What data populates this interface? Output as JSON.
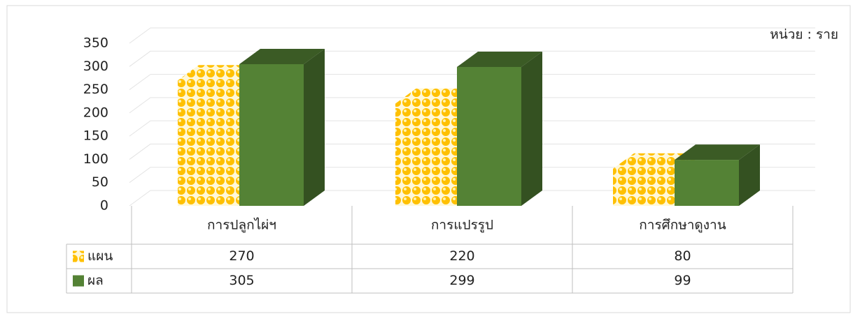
{
  "chart_data": {
    "type": "bar3d",
    "annotation": "หน่วย : ราย",
    "categories": [
      "การปลูกไผ่ฯ",
      "การแปรรูป",
      "การศึกษาดูงาน"
    ],
    "series": [
      {
        "name": "แผน",
        "color": "#FFC000",
        "values": [
          270,
          220,
          80
        ]
      },
      {
        "name": "ผล",
        "color": "#548235",
        "values": [
          305,
          299,
          99
        ]
      }
    ],
    "ylim": [
      0,
      350
    ],
    "yticks": [
      0,
      50,
      100,
      150,
      200,
      250,
      300,
      350
    ],
    "grid": true,
    "data_table": true
  }
}
